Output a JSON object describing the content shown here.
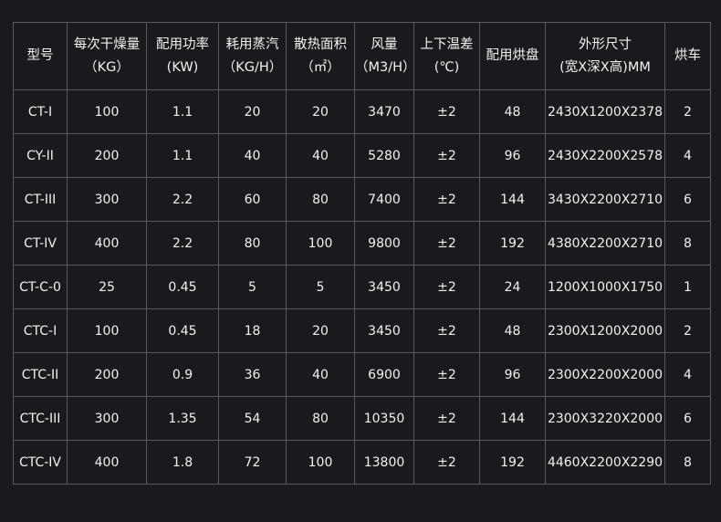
{
  "headers": [
    {
      "title": "型号",
      "unit": ""
    },
    {
      "title": "每次干燥量",
      "unit": "（KG）"
    },
    {
      "title": "配用功率",
      "unit": "(KW)"
    },
    {
      "title": "耗用蒸汽",
      "unit": "（KG/H）"
    },
    {
      "title": "散热面积",
      "unit": "（㎡）"
    },
    {
      "title": "风量",
      "unit": "（M3/H）"
    },
    {
      "title": "上下温差",
      "unit": "(℃)"
    },
    {
      "title": "配用烘盘",
      "unit": ""
    },
    {
      "title": "外形尺寸",
      "unit": "(宽X深X高)MM"
    },
    {
      "title": "烘车",
      "unit": ""
    }
  ],
  "rows": [
    [
      "CT-I",
      "100",
      "1.1",
      "20",
      "20",
      "3470",
      "±2",
      "48",
      "2430X1200X2378",
      "2"
    ],
    [
      "CY-II",
      "200",
      "1.1",
      "40",
      "40",
      "5280",
      "±2",
      "96",
      "2430X2200X2578",
      "4"
    ],
    [
      "CT-III",
      "300",
      "2.2",
      "60",
      "80",
      "7400",
      "±2",
      "144",
      "3430X2200X2710",
      "6"
    ],
    [
      "CT-IV",
      "400",
      "2.2",
      "80",
      "100",
      "9800",
      "±2",
      "192",
      "4380X2200X2710",
      "8"
    ],
    [
      "CT-C-0",
      "25",
      "0.45",
      "5",
      "5",
      "3450",
      "±2",
      "24",
      "1200X1000X1750",
      "1"
    ],
    [
      "CTC-I",
      "100",
      "0.45",
      "18",
      "20",
      "3450",
      "±2",
      "48",
      "2300X1200X2000",
      "2"
    ],
    [
      "CTC-II",
      "200",
      "0.9",
      "36",
      "40",
      "6900",
      "±2",
      "96",
      "2300X2200X2000",
      "4"
    ],
    [
      "CTC-III",
      "300",
      "1.35",
      "54",
      "80",
      "10350",
      "±2",
      "144",
      "2300X3220X2000",
      "6"
    ],
    [
      "CTC-IV",
      "400",
      "1.8",
      "72",
      "100",
      "13800",
      "±2",
      "192",
      "4460X2200X2290",
      "8"
    ]
  ]
}
